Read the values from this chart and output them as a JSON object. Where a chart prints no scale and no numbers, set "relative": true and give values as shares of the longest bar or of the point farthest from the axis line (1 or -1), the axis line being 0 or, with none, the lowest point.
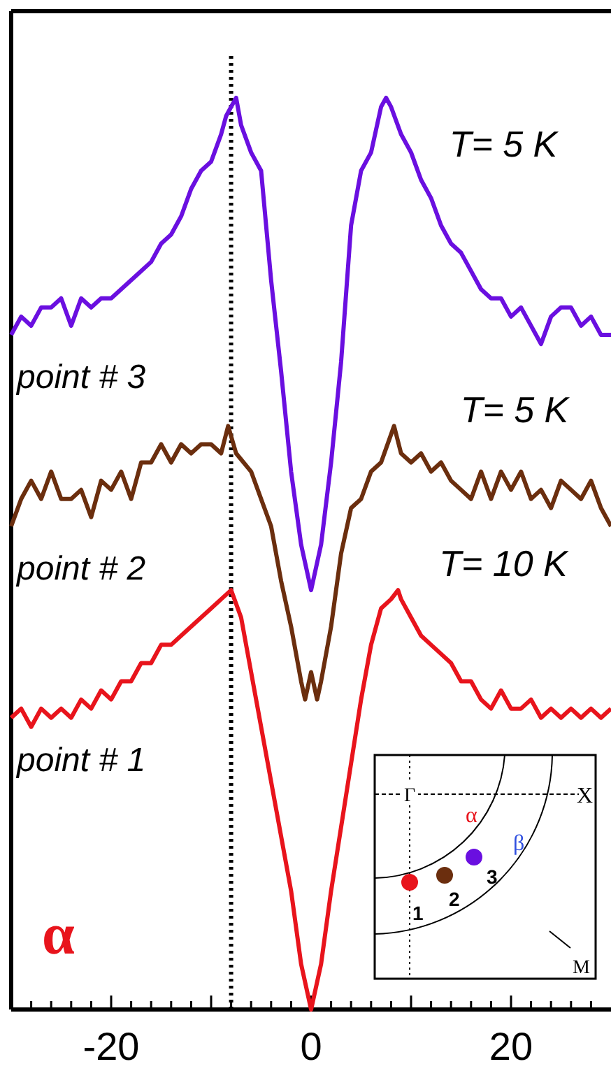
{
  "chart_data": {
    "type": "line",
    "relative": true,
    "xlim": [
      -30,
      30
    ],
    "xticks": [
      {
        "value": -28,
        "label": null
      },
      {
        "value": -26,
        "label": null
      },
      {
        "value": -24,
        "label": null
      },
      {
        "value": -22,
        "label": null
      },
      -20,
      {
        "value": -18,
        "label": null
      },
      {
        "value": -16,
        "label": null
      },
      {
        "value": -14,
        "label": null
      },
      {
        "value": -12,
        "label": null
      },
      {
        "value": -10,
        "label": null
      },
      {
        "value": -8,
        "label": null
      },
      {
        "value": -6,
        "label": null
      },
      {
        "value": -4,
        "label": null
      },
      {
        "value": -2,
        "label": null
      },
      0,
      {
        "value": 2,
        "label": null
      },
      {
        "value": 4,
        "label": null
      },
      {
        "value": 6,
        "label": null
      },
      {
        "value": 8,
        "label": null
      },
      {
        "value": 10,
        "label": null
      },
      {
        "value": 12,
        "label": null
      },
      {
        "value": 14,
        "label": null
      },
      {
        "value": 16,
        "label": null
      },
      {
        "value": 18,
        "label": null
      },
      20,
      {
        "value": 22,
        "label": null
      },
      {
        "value": 24,
        "label": null
      },
      {
        "value": 26,
        "label": null
      },
      {
        "value": 28,
        "label": null
      }
    ],
    "tick_labels": "x",
    "grid": false,
    "line_style": "solid",
    "series": [
      {
        "name": "point # 3",
        "color": "#6a0fe0",
        "x": [
          -30,
          -29,
          -28,
          -27,
          -26,
          -25,
          -24,
          -23,
          -22,
          -21,
          -20,
          -19,
          -18,
          -17,
          -16,
          -15,
          -14,
          -13,
          -12,
          -11,
          -10,
          -9,
          -8.5,
          -8,
          -7.5,
          -7,
          -6,
          -5,
          -4,
          -3,
          -2,
          -1,
          0,
          1,
          2,
          3,
          4,
          5,
          6,
          7,
          7.5,
          8,
          9,
          10,
          11,
          12,
          13,
          14,
          15,
          16,
          17,
          18,
          19,
          20,
          21,
          22,
          23,
          24,
          25,
          26,
          27,
          28,
          29,
          30
        ],
        "values": [
          0.74,
          0.76,
          0.75,
          0.77,
          0.77,
          0.78,
          0.75,
          0.78,
          0.77,
          0.78,
          0.78,
          0.79,
          0.8,
          0.81,
          0.82,
          0.84,
          0.85,
          0.87,
          0.9,
          0.92,
          0.93,
          0.96,
          0.98,
          0.99,
          1.0,
          0.97,
          0.94,
          0.92,
          0.8,
          0.7,
          0.59,
          0.51,
          0.46,
          0.51,
          0.6,
          0.71,
          0.86,
          0.92,
          0.94,
          0.99,
          1.0,
          0.99,
          0.96,
          0.94,
          0.91,
          0.89,
          0.86,
          0.84,
          0.83,
          0.81,
          0.79,
          0.78,
          0.78,
          0.76,
          0.77,
          0.75,
          0.73,
          0.76,
          0.77,
          0.77,
          0.75,
          0.76,
          0.74,
          0.74
        ]
      },
      {
        "name": "point # 2",
        "color": "#6b2e0e",
        "x": [
          -30,
          -29,
          -28,
          -27,
          -26,
          -25,
          -24,
          -23,
          -22,
          -21,
          -20,
          -19,
          -18,
          -17,
          -16,
          -15,
          -14,
          -13,
          -12,
          -11,
          -10,
          -9,
          -8.3,
          -7.5,
          -6,
          -5,
          -4,
          -3,
          -2,
          -1,
          -0.6,
          0,
          0.6,
          1,
          2,
          3,
          4,
          5,
          6,
          7,
          8.3,
          9,
          10,
          11,
          12,
          13,
          14,
          15,
          16,
          17,
          18,
          19,
          20,
          21,
          22,
          23,
          24,
          25,
          26,
          27,
          28,
          29,
          30
        ],
        "values": [
          0.53,
          0.56,
          0.58,
          0.56,
          0.59,
          0.56,
          0.56,
          0.57,
          0.54,
          0.58,
          0.57,
          0.59,
          0.56,
          0.6,
          0.6,
          0.62,
          0.6,
          0.62,
          0.61,
          0.62,
          0.62,
          0.61,
          0.64,
          0.61,
          0.59,
          0.56,
          0.53,
          0.47,
          0.42,
          0.36,
          0.34,
          0.37,
          0.34,
          0.36,
          0.42,
          0.5,
          0.55,
          0.56,
          0.59,
          0.6,
          0.64,
          0.61,
          0.6,
          0.61,
          0.59,
          0.6,
          0.58,
          0.57,
          0.56,
          0.59,
          0.56,
          0.59,
          0.57,
          0.59,
          0.56,
          0.57,
          0.55,
          0.58,
          0.57,
          0.56,
          0.58,
          0.55,
          0.53
        ]
      },
      {
        "name": "point # 1",
        "color": "#e8141c",
        "x": [
          -30,
          -29,
          -28,
          -27,
          -26,
          -25,
          -24,
          -23,
          -22,
          -21,
          -20,
          -19,
          -18,
          -17,
          -16,
          -15,
          -14,
          -13,
          -12,
          -11,
          -10,
          -9,
          -8,
          -7,
          -6,
          -5,
          -4,
          -3,
          -2,
          -1,
          0,
          1,
          2,
          3,
          4,
          5,
          6,
          7,
          8,
          8.7,
          9,
          10,
          11,
          12,
          13,
          14,
          15,
          16,
          17,
          18,
          19,
          20,
          21,
          22,
          23,
          24,
          25,
          26,
          27,
          28,
          29,
          30
        ],
        "values": [
          0.32,
          0.33,
          0.31,
          0.33,
          0.32,
          0.33,
          0.32,
          0.34,
          0.33,
          0.35,
          0.34,
          0.36,
          0.36,
          0.38,
          0.38,
          0.4,
          0.4,
          0.41,
          0.42,
          0.43,
          0.44,
          0.45,
          0.46,
          0.43,
          0.37,
          0.31,
          0.25,
          0.19,
          0.13,
          0.05,
          0,
          0.05,
          0.13,
          0.2,
          0.27,
          0.34,
          0.4,
          0.44,
          0.45,
          0.46,
          0.45,
          0.43,
          0.41,
          0.4,
          0.39,
          0.38,
          0.36,
          0.36,
          0.34,
          0.33,
          0.35,
          0.33,
          0.33,
          0.34,
          0.32,
          0.33,
          0.32,
          0.33,
          0.32,
          0.33,
          0.32,
          0.33
        ]
      }
    ],
    "ref_lines": [
      {
        "axis": "x",
        "value": -8,
        "line_style": "dotted",
        "color": "#000000"
      }
    ],
    "annotations": [
      "T= 5 K",
      "T= 5 K",
      "T= 10 K",
      "α",
      "Γ",
      "X",
      "M",
      "α",
      "β",
      "1",
      "2",
      "3"
    ]
  }
}
